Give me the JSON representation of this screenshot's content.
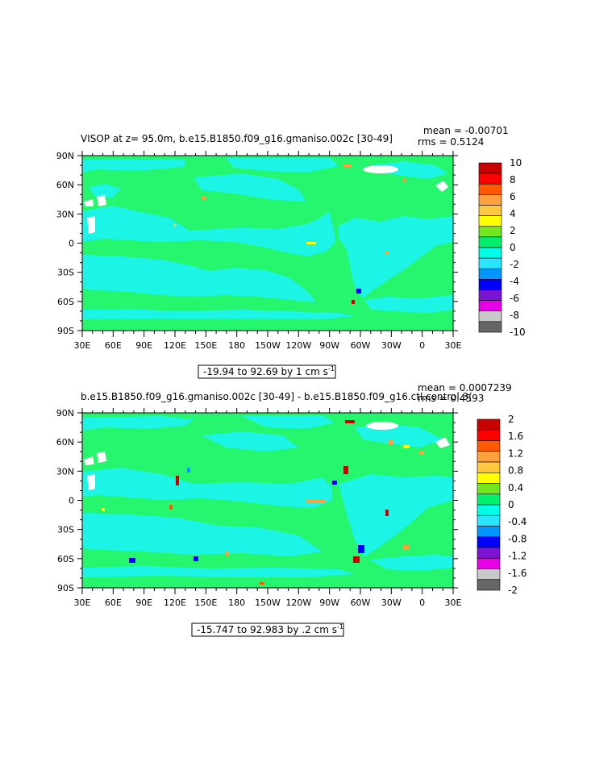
{
  "panels": [
    {
      "title": "VISOP at z=  95.0m, b.e15.B1850.f09_g16.gmaniso.002c [30-49]",
      "mean": "mean = -0.00701",
      "rms": "rms = 0.5124",
      "range_label": "-19.94 to 92.69 by 1 cm s",
      "range_sup": "-1",
      "colorbar_labels": [
        "10",
        "8",
        "6",
        "4",
        "2",
        "0",
        "-2",
        "-4",
        "-6",
        "-8",
        "-10"
      ]
    },
    {
      "title": "b.e15.B1850.f09_g16.gmaniso.002c [30-49] - b.e15.B1850.f09_g16.ctl.control.3(",
      "mean": "mean = 0.0007239",
      "rms": "rms = 0.4593",
      "range_label": "-15.747 to 92.983 by .2 cm s",
      "range_sup": "-1",
      "colorbar_labels": [
        "2",
        "1.6",
        "1.2",
        "0.8",
        "0.4",
        "0",
        "-0.4",
        "-0.8",
        "-1.2",
        "-1.6",
        "-2"
      ]
    }
  ],
  "lat_labels": [
    "90N",
    "60N",
    "30N",
    "0",
    "30S",
    "60S",
    "90S"
  ],
  "lon_labels": [
    "30E",
    "60E",
    "90E",
    "120E",
    "150E",
    "180",
    "150W",
    "120W",
    "90W",
    "60W",
    "30W",
    "0",
    "30E"
  ],
  "colors": {
    "ocean_pos": "#26f56e",
    "ocean_neg": "#1cf5e6",
    "land": "#ffffff",
    "colorbar": [
      "#c80000",
      "#ff0000",
      "#ff5a00",
      "#ffa03c",
      "#ffc840",
      "#ffff00",
      "#72e61e",
      "#00f06e",
      "#00ffe6",
      "#28e6ff",
      "#0096ff",
      "#0000ff",
      "#7a14d2",
      "#e600e6",
      "#c8c8c8",
      "#666666"
    ]
  }
}
